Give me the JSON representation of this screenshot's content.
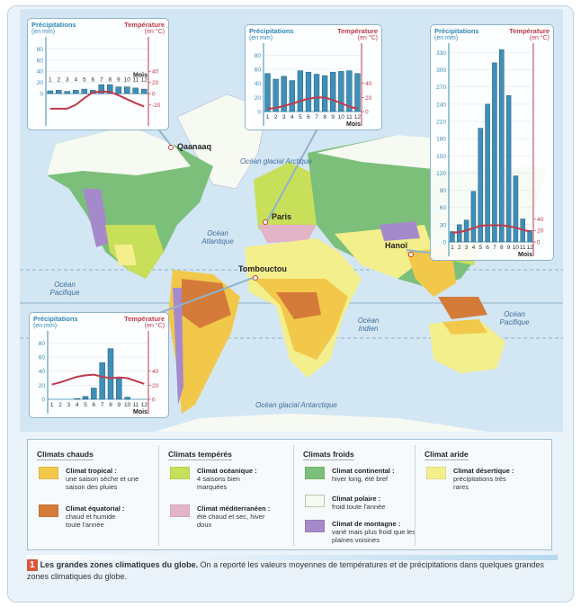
{
  "map": {
    "oceans": [
      "Océan glacial Arctique",
      "Océan Atlantique",
      "Océan Pacifique",
      "Océan Indien",
      "Océan Pacifique",
      "Océan glacial Antarctique"
    ],
    "cities": [
      "Qaanaaq",
      "Paris",
      "Tombouctou",
      "Hanoï"
    ]
  },
  "chart_labels": {
    "precip_title": "Précipitations",
    "precip_unit": "(en mm)",
    "temp_title": "Température",
    "temp_unit": "(en °C)",
    "month_axis": "Mois"
  },
  "chart_data": [
    {
      "type": "bar+line",
      "city": "Qaanaaq",
      "x": [
        1,
        2,
        3,
        4,
        5,
        6,
        7,
        8,
        9,
        10,
        11,
        12
      ],
      "precip": [
        5,
        6,
        4,
        6,
        8,
        6,
        16,
        16,
        12,
        12,
        10,
        8
      ],
      "temp": [
        -27,
        -27,
        -27,
        -20,
        -8,
        2,
        4,
        3,
        -3,
        -10,
        -17,
        -23
      ],
      "precip_ticks": [
        0,
        20,
        40,
        60,
        80
      ],
      "temp_ticks": [
        -20,
        0,
        20,
        40
      ],
      "ylim": [
        -32,
        95
      ]
    },
    {
      "type": "bar+line",
      "city": "Paris",
      "x": [
        1,
        2,
        3,
        4,
        5,
        6,
        7,
        8,
        9,
        10,
        11,
        12
      ],
      "precip": [
        54,
        46,
        50,
        44,
        58,
        56,
        53,
        51,
        56,
        57,
        58,
        54
      ],
      "temp": [
        4,
        5,
        8,
        11,
        15,
        18,
        20,
        20,
        16,
        12,
        7,
        4
      ],
      "precip_ticks": [
        0,
        20,
        40,
        60,
        80
      ],
      "temp_ticks": [
        0,
        20,
        40
      ],
      "ylim": [
        0,
        92
      ]
    },
    {
      "type": "bar+line",
      "city": "Hanoï",
      "x": [
        1,
        2,
        3,
        4,
        5,
        6,
        7,
        8,
        9,
        10,
        11,
        12
      ],
      "precip": [
        18,
        30,
        38,
        88,
        198,
        240,
        312,
        335,
        255,
        115,
        40,
        20
      ],
      "temp": [
        16,
        17,
        20,
        24,
        28,
        29,
        29,
        29,
        27,
        25,
        21,
        18
      ],
      "precip_ticks": [
        0,
        30,
        60,
        90,
        120,
        150,
        180,
        210,
        240,
        270,
        300,
        330
      ],
      "temp_ticks": [
        0,
        20,
        40
      ],
      "ylim": [
        0,
        340
      ]
    },
    {
      "type": "bar+line",
      "city": "Tombouctou",
      "x": [
        1,
        2,
        3,
        4,
        5,
        6,
        7,
        8,
        9,
        10,
        11,
        12
      ],
      "precip": [
        0,
        0,
        0,
        1,
        4,
        16,
        52,
        72,
        29,
        3,
        0,
        0
      ],
      "temp": [
        21,
        24,
        28,
        32,
        34,
        35,
        32,
        30,
        31,
        30,
        26,
        22
      ],
      "precip_ticks": [
        0,
        20,
        40,
        60,
        80
      ],
      "temp_ticks": [
        0,
        20,
        40
      ],
      "ylim": [
        0,
        92
      ]
    }
  ],
  "legend": {
    "groups": [
      {
        "title": "Climats chauds",
        "items": [
          {
            "name": "Climat tropical :",
            "desc": "une saison sèche et une saison des pluies",
            "color": "#f2c84b"
          },
          {
            "name": "Climat équatorial :",
            "desc": "chaud et humide toute l'année",
            "color": "#d47b3a"
          }
        ]
      },
      {
        "title": "Climats tempérés",
        "items": [
          {
            "name": "Climat océanique :",
            "desc": "4 saisons bien marquées",
            "color": "#c8df5a"
          },
          {
            "name": "Climat méditerranéen :",
            "desc": "été chaud et sec, hiver doux",
            "color": "#e3b3c8"
          }
        ]
      },
      {
        "title": "Climats froids",
        "items": [
          {
            "name": "Climat continental :",
            "desc": "hiver long, été bref",
            "color": "#7cbf7a"
          },
          {
            "name": "Climat polaire :",
            "desc": "froid toute l'année",
            "color": "#f7faf3"
          },
          {
            "name": "Climat de montagne :",
            "desc": "varié mais plus froid que les plaines voisines",
            "color": "#a58acb"
          }
        ]
      },
      {
        "title": "Climat aride",
        "items": [
          {
            "name": "Climat désertique :",
            "desc": "précipitations très rares",
            "color": "#f3ef8c"
          }
        ]
      }
    ]
  },
  "caption": {
    "number": "1",
    "title": "Les grandes zones climatiques du globe.",
    "text": " On a reporté les valeurs moyennes de températures et de précipitations dans quelques grandes zones climatiques du globe."
  }
}
